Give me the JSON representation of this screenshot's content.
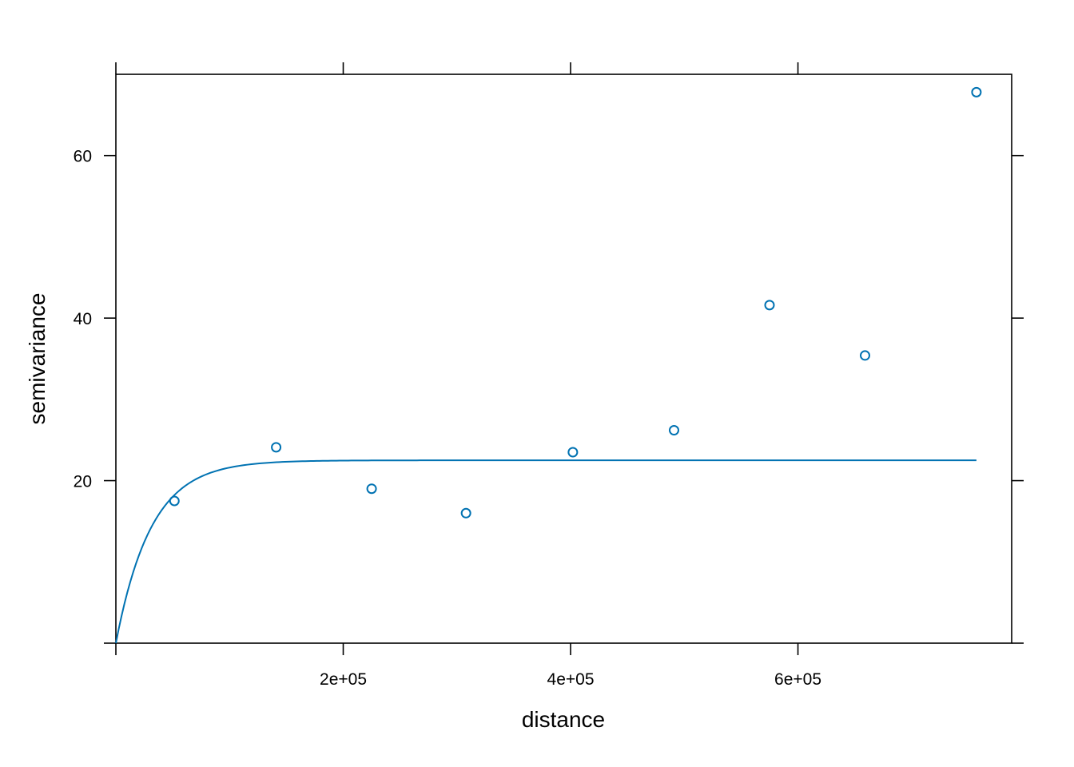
{
  "chart_data": {
    "type": "scatter",
    "title": "",
    "xlabel": "distance",
    "ylabel": "semivariance",
    "xlim": [
      0,
      788000
    ],
    "ylim": [
      0,
      70
    ],
    "x_ticks": [
      200000,
      400000,
      600000
    ],
    "x_tick_labels": [
      "2e+05",
      "4e+05",
      "6e+05"
    ],
    "y_ticks": [
      20,
      40,
      60
    ],
    "y_tick_labels": [
      "20",
      "40",
      "60"
    ],
    "grid": false,
    "legend": "none",
    "colors": {
      "series": "#0072B2",
      "axes": "#000000",
      "background": "#ffffff"
    },
    "series": [
      {
        "kind": "points",
        "x": [
          51500,
          141000,
          225000,
          308000,
          402000,
          491000,
          575000,
          659000,
          757000
        ],
        "y": [
          17.5,
          24.1,
          19.0,
          16.0,
          23.5,
          26.2,
          41.6,
          35.4,
          67.8
        ]
      },
      {
        "kind": "fitted-model-line",
        "model": "exponential",
        "x_range": [
          0,
          757000
        ],
        "nugget": 0,
        "psill": 22.5,
        "range": 31000
      }
    ]
  }
}
